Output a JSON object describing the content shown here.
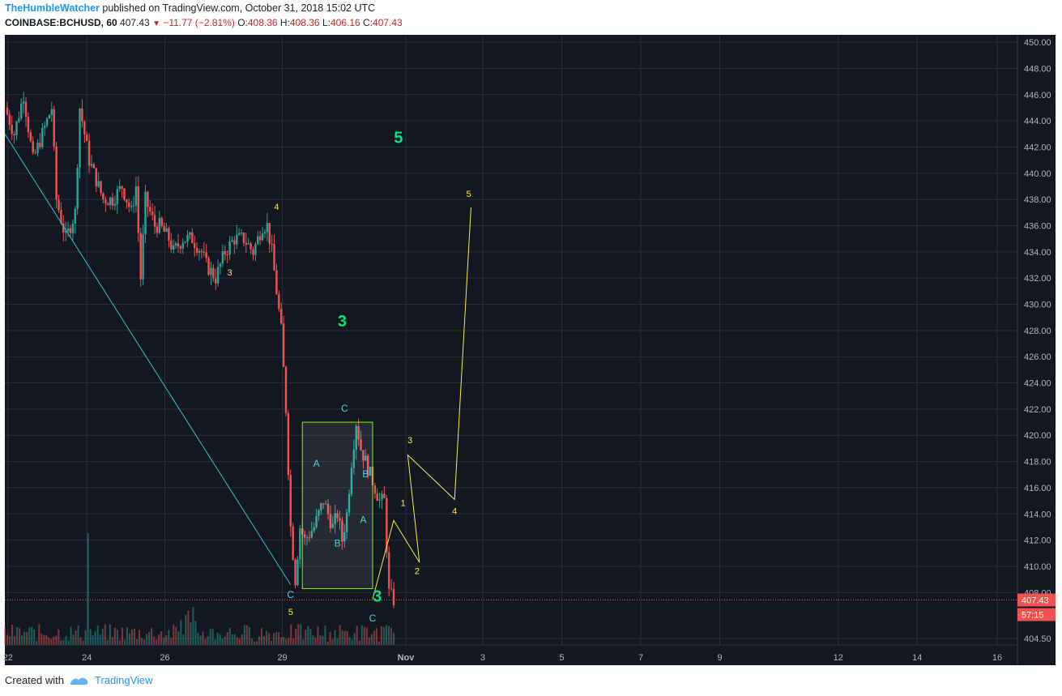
{
  "header": {
    "author": "TheHumbleWatcher",
    "published_text": " published on TradingView.com, October 31, 2018 15:02 UTC",
    "symbol": "COINBASE:BCHUSD, 60",
    "last": "407.43",
    "change": "−11.77 (−2.81%)",
    "o_label": "O:",
    "o_val": "408.36",
    "h_label": "H:",
    "h_val": "408.36",
    "l_label": "L:",
    "l_val": "406.16",
    "c_label": "C:",
    "c_val": "407.43"
  },
  "footer": {
    "created_with": "Created with",
    "brand": "TradingView"
  },
  "colors": {
    "background": "#131722",
    "grid": "#2a2e39",
    "up": "#26a69a",
    "down": "#ef5350",
    "trendline": "#26c6da",
    "wave_minor": "#ffeb3b",
    "wave_major": "#00e676",
    "correction": "#4dd0e1",
    "box": "#76ff03",
    "price_badge": "#ef5350"
  },
  "chart_data": {
    "type": "candlestick",
    "interval": "60",
    "y_axis_labels": [
      "404.50",
      "408.00",
      "410.00",
      "412.00",
      "414.00",
      "416.00",
      "418.00",
      "420.00",
      "422.00",
      "424.00",
      "426.00",
      "428.00",
      "430.00",
      "432.00",
      "434.00",
      "436.00",
      "438.00",
      "440.00",
      "442.00",
      "444.00",
      "446.00",
      "448.00",
      "450.00"
    ],
    "ylim": [
      404.0,
      450.5
    ],
    "x_axis_labels": [
      "22",
      "24",
      "26",
      "29",
      "Nov",
      "3",
      "5",
      "7",
      "9",
      "12",
      "14",
      "16"
    ],
    "last_price_label": "407.43",
    "countdown_label": "57:15",
    "price_path": [
      [
        0,
        445
      ],
      [
        2,
        443
      ],
      [
        4,
        446
      ],
      [
        6,
        441
      ],
      [
        8,
        443
      ],
      [
        10,
        445
      ],
      [
        11,
        438
      ],
      [
        13,
        435
      ],
      [
        15,
        437
      ],
      [
        16,
        445
      ],
      [
        18,
        441
      ],
      [
        19,
        440
      ],
      [
        21,
        438
      ],
      [
        23,
        438
      ],
      [
        25,
        439
      ],
      [
        27,
        437
      ],
      [
        28,
        439
      ],
      [
        29,
        432
      ],
      [
        30,
        438
      ],
      [
        32,
        436
      ],
      [
        33,
        436
      ],
      [
        35,
        435
      ],
      [
        36,
        434
      ],
      [
        38,
        435
      ],
      [
        40,
        435
      ],
      [
        42,
        434
      ],
      [
        43,
        433
      ],
      [
        45,
        432
      ],
      [
        47,
        434
      ],
      [
        49,
        435
      ],
      [
        51,
        435
      ],
      [
        53,
        434
      ],
      [
        55,
        436
      ],
      [
        56,
        436
      ],
      [
        57,
        434
      ],
      [
        58,
        431
      ],
      [
        59,
        428
      ],
      [
        60,
        422
      ],
      [
        61,
        413
      ],
      [
        62,
        409
      ],
      [
        63,
        413
      ],
      [
        64,
        412
      ],
      [
        66,
        413
      ],
      [
        68,
        415
      ],
      [
        69,
        414
      ],
      [
        70,
        413
      ],
      [
        71,
        414
      ],
      [
        72,
        412
      ],
      [
        73,
        414
      ],
      [
        74,
        418
      ],
      [
        75,
        421
      ],
      [
        76,
        419
      ],
      [
        77,
        418
      ],
      [
        78,
        417
      ],
      [
        79,
        416
      ],
      [
        80,
        415
      ],
      [
        81,
        415
      ],
      [
        82,
        408
      ],
      [
        83,
        407.43
      ]
    ],
    "volumes": [
      2,
      1,
      3,
      1,
      2,
      2,
      1,
      2,
      1,
      2,
      1,
      2,
      3,
      1,
      2,
      1,
      1,
      2,
      1,
      2,
      1,
      1,
      2,
      1,
      1,
      2,
      1,
      1,
      2,
      1,
      1,
      2,
      1,
      1,
      2,
      1,
      1,
      2,
      1,
      1,
      2,
      1,
      1,
      2,
      1,
      1,
      2,
      1,
      1,
      2,
      1,
      1,
      2,
      1,
      1,
      2,
      1,
      1,
      2,
      1,
      1,
      2,
      1,
      1,
      2,
      1,
      1,
      2,
      1,
      1,
      2,
      1,
      1,
      2,
      1,
      1,
      2,
      1,
      1,
      2,
      1,
      1,
      2,
      1
    ],
    "wave_labels_minor": [
      {
        "t": "3",
        "x": 48,
        "y": 432.2
      },
      {
        "t": "4",
        "x": 58,
        "y": 437.2
      },
      {
        "t": "5",
        "x": 61,
        "y": 406.3
      },
      {
        "t": "1",
        "x": 85,
        "y": 414.6
      },
      {
        "t": "2",
        "x": 88,
        "y": 409.4
      },
      {
        "t": "3",
        "x": 86.5,
        "y": 419.4
      },
      {
        "t": "4",
        "x": 96,
        "y": 414.0
      },
      {
        "t": "5",
        "x": 99,
        "y": 438.2
      }
    ],
    "wave_labels_major": [
      {
        "t": "5",
        "x": 84,
        "y": 442.3
      },
      {
        "t": "3",
        "x": 72,
        "y": 428.3
      },
      {
        "t": "3",
        "x": 79.5,
        "y": 407.3
      }
    ],
    "correction_labels": [
      {
        "t": "C",
        "x": 61,
        "y": 407.6
      },
      {
        "t": "A",
        "x": 66.5,
        "y": 417.6
      },
      {
        "t": "B",
        "x": 71,
        "y": 411.5
      },
      {
        "t": "C",
        "x": 72.5,
        "y": 421.8
      },
      {
        "t": "B",
        "x": 77,
        "y": 416.8
      },
      {
        "t": "A",
        "x": 76.5,
        "y": 413.3
      },
      {
        "t": "C",
        "x": 78.5,
        "y": 405.8
      }
    ],
    "projection": [
      [
        78.5,
        407.5
      ],
      [
        83,
        413.5
      ],
      [
        88.5,
        410.3
      ],
      [
        86,
        418.5
      ],
      [
        96,
        415.1
      ],
      [
        99.5,
        437.4
      ]
    ],
    "trendline": [
      [
        0,
        443
      ],
      [
        61,
        408.6
      ]
    ],
    "box": {
      "x0": 63.5,
      "x1": 78.5,
      "y0": 408.3,
      "y1": 421.0
    }
  }
}
